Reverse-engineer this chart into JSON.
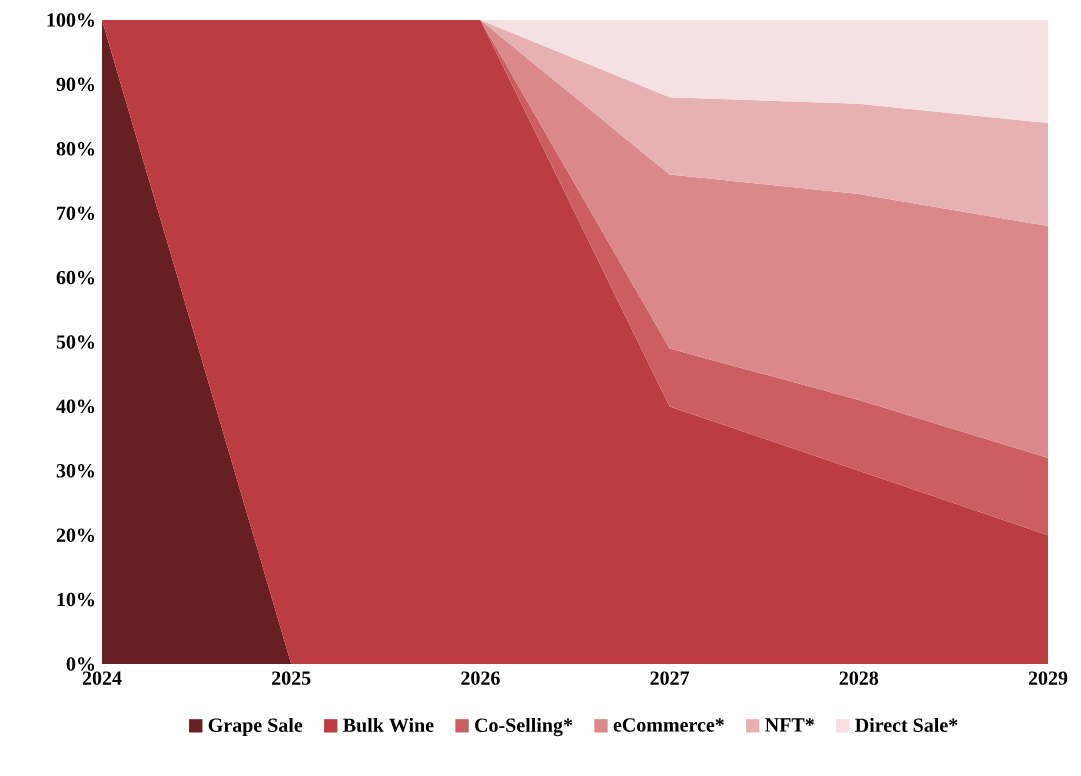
{
  "chart_data": {
    "type": "area",
    "stacked": true,
    "x": [
      2024,
      2025,
      2026,
      2027,
      2028,
      2029
    ],
    "xlim": [
      2024,
      2029
    ],
    "xticks": [
      2024,
      2025,
      2026,
      2027,
      2028,
      2029
    ],
    "ylim": [
      0,
      100
    ],
    "yticks": [
      {
        "value": 0,
        "label": "0%"
      },
      {
        "value": 10,
        "label": "10%"
      },
      {
        "value": 20,
        "label": "20%"
      },
      {
        "value": 30,
        "label": "30%"
      },
      {
        "value": 40,
        "label": "40%"
      },
      {
        "value": 50,
        "label": "50%"
      },
      {
        "value": 60,
        "label": "60%"
      },
      {
        "value": 70,
        "label": "70%"
      },
      {
        "value": 80,
        "label": "80%"
      },
      {
        "value": 90,
        "label": "90%"
      },
      {
        "value": 100,
        "label": "100%"
      }
    ],
    "legend": "bottom",
    "series": [
      {
        "name": "Grape Sale",
        "color": "#662024",
        "values": [
          100,
          0,
          null,
          null,
          null,
          null
        ]
      },
      {
        "name": "Bulk Wine",
        "color": "#bb3d42",
        "values": [
          0,
          100,
          100,
          40,
          30,
          20
        ]
      },
      {
        "name": "Co-Selling*",
        "color": "#cc5e62",
        "values": [
          null,
          null,
          0,
          9,
          11,
          12
        ]
      },
      {
        "name": "eCommerce*",
        "color": "#db888b",
        "values": [
          null,
          null,
          0,
          27,
          32,
          36
        ]
      },
      {
        "name": "NFT*",
        "color": "#e7b1b3",
        "values": [
          null,
          null,
          0,
          12,
          14,
          16
        ]
      },
      {
        "name": "Direct Sale*",
        "color": "#f5e1e2",
        "values": [
          null,
          null,
          0,
          12,
          13,
          16
        ]
      }
    ]
  }
}
